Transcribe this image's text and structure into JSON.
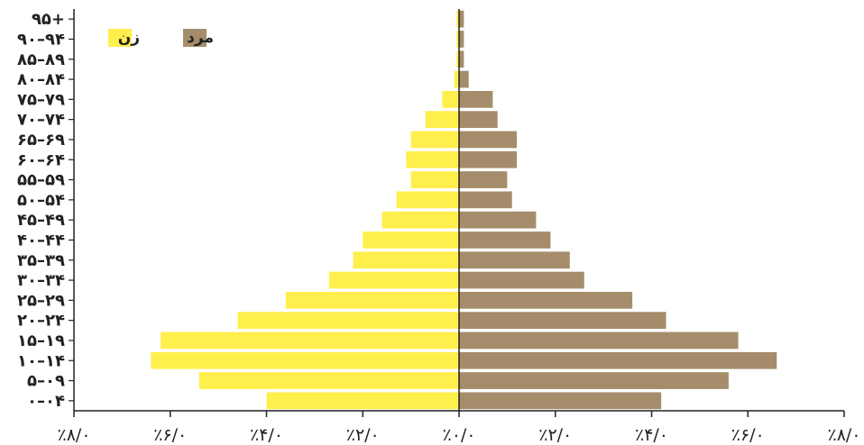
{
  "chart_data": {
    "type": "bar",
    "orientation": "horizontal",
    "layout": "population-pyramid",
    "categories": [
      "۰–۰۴",
      "۵–۰۹",
      "۱۰–۱۴",
      "۱۵–۱۹",
      "۲۰–۲۴",
      "۲۵–۲۹",
      "۳۰–۳۴",
      "۳۵–۳۹",
      "۴۰–۴۴",
      "۴۵–۴۹",
      "۵۰–۵۴",
      "۵۵–۵۹",
      "۶۰–۶۴",
      "۶۵–۶۹",
      "۷۰–۷۴",
      "۷۵–۷۹",
      "۸۰–۸۴",
      "۸۵–۸۹",
      "۹۰–۹۴",
      "۹۵+"
    ],
    "series": [
      {
        "name": "مرد",
        "side": "right",
        "color": "#a58d6c",
        "values": [
          4.2,
          5.6,
          6.6,
          5.8,
          4.3,
          3.6,
          2.6,
          2.3,
          1.9,
          1.6,
          1.1,
          1.0,
          1.2,
          1.2,
          0.8,
          0.7,
          0.2,
          0.1,
          0.1,
          0.1
        ]
      },
      {
        "name": "زن",
        "side": "left",
        "color": "#ffef4c",
        "values": [
          4.0,
          5.4,
          6.4,
          6.2,
          4.6,
          3.6,
          2.7,
          2.2,
          2.0,
          1.6,
          1.3,
          1.0,
          1.1,
          1.0,
          0.7,
          0.35,
          0.1,
          0.05,
          0.05,
          0.05
        ]
      }
    ],
    "x_ticks": [
      "٪۸/۰",
      "٪۶/۰",
      "٪۴/۰",
      "٪۲/۰",
      "٪۰/۰",
      "٪۲/۰",
      "٪۴/۰",
      "٪۶/۰",
      "٪۸/۰"
    ],
    "xlim": [
      -8,
      8
    ],
    "legend": [
      {
        "label": "مرد",
        "color": "#a58d6c"
      },
      {
        "label": "زن",
        "color": "#ffef4c"
      }
    ],
    "legend_position": "top-left",
    "grid": false
  }
}
